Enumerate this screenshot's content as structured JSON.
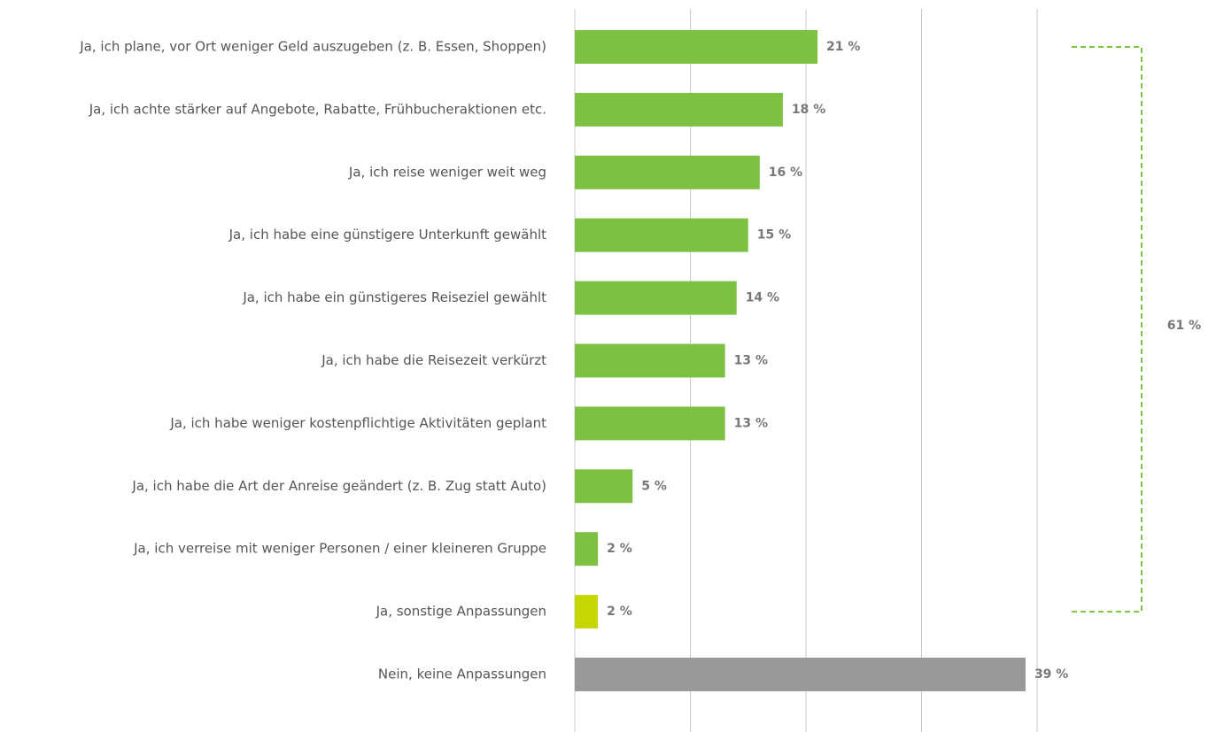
{
  "chart_data": {
    "type": "bar",
    "orientation": "horizontal",
    "categories": [
      "Ja, ich plane, vor Ort weniger Geld auszugeben (z. B. Essen, Shoppen)",
      "Ja, ich achte stärker auf Angebote, Rabatte, Frühbucheraktionen etc.",
      "Ja, ich reise weniger weit weg",
      "Ja, ich habe eine günstigere Unterkunft gewählt",
      "Ja, ich habe ein günstigeres Reiseziel gewählt",
      "Ja, ich habe die Reisezeit verkürzt",
      "Ja, ich habe weniger kostenpflichtige Aktivitäten geplant",
      "Ja, ich habe die Art der Anreise geändert (z. B. Zug statt Auto)",
      "Ja, ich verreise mit weniger Personen / einer kleineren Gruppe",
      "Ja, sonstige Anpassungen",
      "Nein, keine Anpassungen"
    ],
    "values": [
      21,
      18,
      16,
      15,
      14,
      13,
      13,
      5,
      2,
      2,
      39
    ],
    "value_labels": [
      "21 %",
      "18 %",
      "16 %",
      "15 %",
      "14 %",
      "13 %",
      "13 %",
      "5 %",
      "2 %",
      "2 %",
      "39 %"
    ],
    "colors": [
      "#7dc142",
      "#7dc142",
      "#7dc142",
      "#7dc142",
      "#7dc142",
      "#7dc142",
      "#7dc142",
      "#7dc142",
      "#7dc142",
      "#c5d600",
      "#999999"
    ],
    "xlim": [
      0,
      40
    ],
    "xticks": [
      0,
      10,
      20,
      30,
      40
    ],
    "grid": true,
    "annotation": "61 %",
    "annotation_color": "#7dc142"
  }
}
